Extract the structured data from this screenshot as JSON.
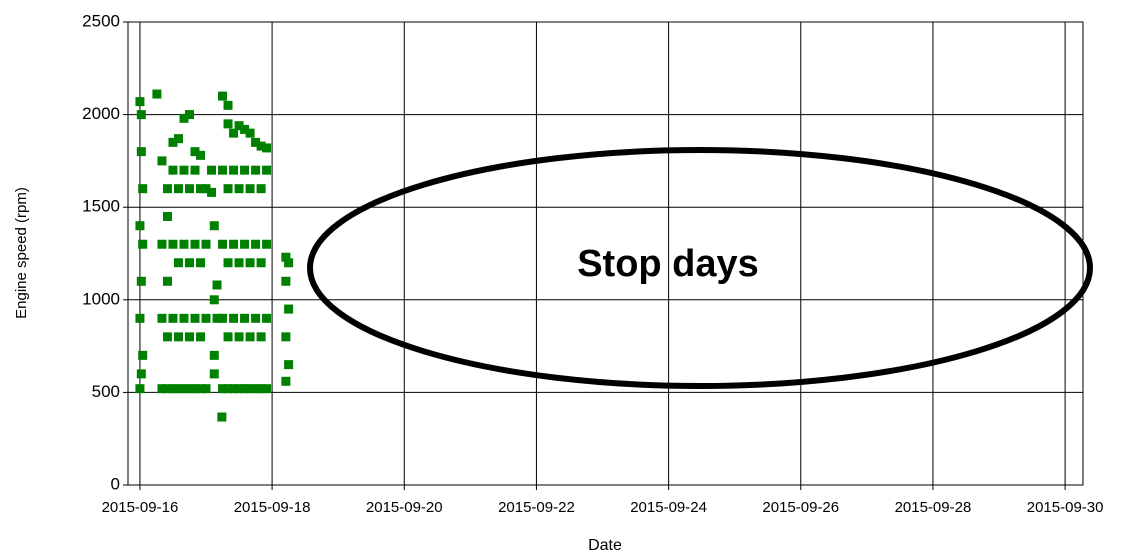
{
  "chart_data": {
    "type": "scatter",
    "xlabel": "Date",
    "ylabel": "Engine speed (rpm)",
    "annotation": "Stop days",
    "color": "#008000",
    "grid": true,
    "xlim": [
      "2015-09-15 19:40",
      "2015-09-30 06:30"
    ],
    "xticks": [
      "2015-09-16",
      "2015-09-18",
      "2015-09-20",
      "2015-09-22",
      "2015-09-24",
      "2015-09-26",
      "2015-09-28",
      "2015-09-30"
    ],
    "ylim": [
      0,
      2500
    ],
    "yticks": [
      0,
      500,
      1000,
      1500,
      2000,
      2500
    ],
    "x": [
      "2015-09-16 00:00",
      "2015-09-16 00:00",
      "2015-09-16 00:00",
      "2015-09-16 00:00",
      "2015-09-16 00:30",
      "2015-09-16 00:30",
      "2015-09-16 00:30",
      "2015-09-16 00:30",
      "2015-09-16 01:00",
      "2015-09-16 01:00",
      "2015-09-16 01:00",
      "2015-09-16 06:10",
      "2015-09-16 08:00",
      "2015-09-16 08:00",
      "2015-09-16 08:00",
      "2015-09-16 08:00",
      "2015-09-16 10:00",
      "2015-09-16 10:00",
      "2015-09-16 10:00",
      "2015-09-16 10:00",
      "2015-09-16 10:00",
      "2015-09-16 12:00",
      "2015-09-16 12:00",
      "2015-09-16 12:00",
      "2015-09-16 12:00",
      "2015-09-16 12:00",
      "2015-09-16 14:00",
      "2015-09-16 14:00",
      "2015-09-16 14:00",
      "2015-09-16 14:00",
      "2015-09-16 14:00",
      "2015-09-16 16:00",
      "2015-09-16 16:00",
      "2015-09-16 16:00",
      "2015-09-16 16:00",
      "2015-09-16 16:00",
      "2015-09-16 18:00",
      "2015-09-16 18:00",
      "2015-09-16 18:00",
      "2015-09-16 18:00",
      "2015-09-16 18:00",
      "2015-09-16 20:00",
      "2015-09-16 20:00",
      "2015-09-16 20:00",
      "2015-09-16 20:00",
      "2015-09-16 20:00",
      "2015-09-16 22:00",
      "2015-09-16 22:00",
      "2015-09-16 22:00",
      "2015-09-16 22:00",
      "2015-09-16 22:00",
      "2015-09-17 00:00",
      "2015-09-17 00:00",
      "2015-09-17 00:00",
      "2015-09-17 00:00",
      "2015-09-17 02:00",
      "2015-09-17 02:00",
      "2015-09-17 03:00",
      "2015-09-17 03:00",
      "2015-09-17 03:00",
      "2015-09-17 03:00",
      "2015-09-17 04:00",
      "2015-09-17 04:00",
      "2015-09-17 05:45",
      "2015-09-17 06:00",
      "2015-09-17 06:00",
      "2015-09-17 06:00",
      "2015-09-17 06:00",
      "2015-09-17 06:00",
      "2015-09-17 08:00",
      "2015-09-17 08:00",
      "2015-09-17 08:00",
      "2015-09-17 08:00",
      "2015-09-17 08:00",
      "2015-09-17 08:00",
      "2015-09-17 10:00",
      "2015-09-17 10:00",
      "2015-09-17 10:00",
      "2015-09-17 10:00",
      "2015-09-17 10:00",
      "2015-09-17 12:00",
      "2015-09-17 12:00",
      "2015-09-17 12:00",
      "2015-09-17 12:00",
      "2015-09-17 12:00",
      "2015-09-17 14:00",
      "2015-09-17 14:00",
      "2015-09-17 14:00",
      "2015-09-17 14:00",
      "2015-09-17 14:00",
      "2015-09-17 16:00",
      "2015-09-17 16:00",
      "2015-09-17 16:00",
      "2015-09-17 16:00",
      "2015-09-17 16:00",
      "2015-09-17 18:00",
      "2015-09-17 18:00",
      "2015-09-17 18:00",
      "2015-09-17 18:00",
      "2015-09-17 18:00",
      "2015-09-17 20:00",
      "2015-09-17 20:00",
      "2015-09-17 20:00",
      "2015-09-17 20:00",
      "2015-09-17 20:00",
      "2015-09-17 22:00",
      "2015-09-17 22:00",
      "2015-09-17 22:00",
      "2015-09-17 22:00",
      "2015-09-17 22:00",
      "2015-09-18 05:00",
      "2015-09-18 05:00",
      "2015-09-18 05:00",
      "2015-09-18 05:00",
      "2015-09-18 06:00",
      "2015-09-18 06:00",
      "2015-09-18 06:00"
    ],
    "values": [
      520,
      900,
      1400,
      2070,
      600,
      1100,
      1800,
      2000,
      700,
      1300,
      1600,
      2111,
      520,
      900,
      1300,
      1750,
      520,
      800,
      1100,
      1450,
      1600,
      520,
      900,
      1300,
      1700,
      1850,
      520,
      800,
      1200,
      1600,
      1870,
      520,
      900,
      1300,
      1700,
      1980,
      520,
      800,
      1200,
      1600,
      2000,
      520,
      900,
      1300,
      1700,
      1800,
      520,
      800,
      1200,
      1600,
      1780,
      520,
      900,
      1300,
      1600,
      1700,
      1580,
      1400,
      1000,
      700,
      600,
      900,
      1080,
      367,
      520,
      900,
      1300,
      1700,
      2100,
      520,
      800,
      1200,
      1600,
      1950,
      2050,
      520,
      900,
      1300,
      1700,
      1900,
      520,
      800,
      1200,
      1600,
      1940,
      520,
      900,
      1300,
      1700,
      1920,
      520,
      800,
      1200,
      1600,
      1900,
      520,
      900,
      1300,
      1700,
      1850,
      520,
      800,
      1200,
      1600,
      1830,
      520,
      900,
      1300,
      1700,
      1820,
      560,
      800,
      1100,
      1230,
      650,
      950,
      1200
    ]
  }
}
